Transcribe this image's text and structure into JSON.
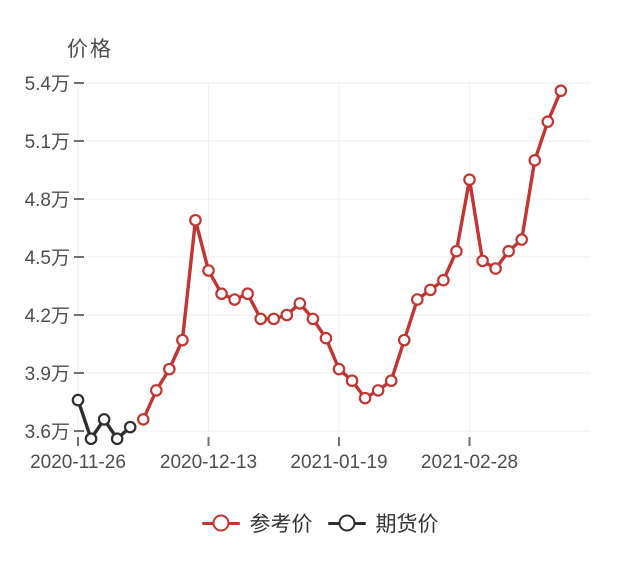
{
  "chart_data": {
    "type": "line",
    "title": "",
    "ylabel": "价格",
    "xlabel": "",
    "ylim": [
      3.6,
      5.4
    ],
    "y_tick_step": 0.3,
    "y_ticks": [
      "3.6万",
      "3.9万",
      "4.2万",
      "4.5万",
      "4.8万",
      "5.1万",
      "5.4万"
    ],
    "x_tick_labels": [
      "2020-11-26",
      "2020-12-13",
      "2021-01-19",
      "2021-02-28"
    ],
    "x_tick_indices": [
      0,
      10,
      20,
      30
    ],
    "n_points": 38,
    "grid": true,
    "legend_position": "bottom",
    "unit": "万",
    "series": [
      {
        "name": "参考价",
        "slug": "reference-price",
        "color": "#c23531",
        "start_index": 5,
        "values": [
          3.66,
          3.81,
          3.92,
          4.07,
          4.69,
          4.43,
          4.31,
          4.28,
          4.31,
          4.18,
          4.18,
          4.2,
          4.26,
          4.18,
          4.08,
          3.92,
          3.86,
          3.77,
          3.81,
          3.86,
          4.07,
          4.28,
          4.33,
          4.38,
          4.53,
          4.9,
          4.48,
          4.44,
          4.53,
          4.59,
          5.0,
          5.2,
          5.36
        ]
      },
      {
        "name": "期货价",
        "slug": "futures-price",
        "color": "#2e2e2e",
        "start_index": 0,
        "values": [
          3.76,
          3.56,
          3.66,
          3.56,
          3.62
        ]
      }
    ],
    "style": {
      "axis_text_color": "#4d4d4d",
      "tick_color": "#707070",
      "grid_color": "#ececec",
      "v_grid_color": "#f2f2f2",
      "legend_text_color": "#333333",
      "background": "#ffffff"
    }
  }
}
